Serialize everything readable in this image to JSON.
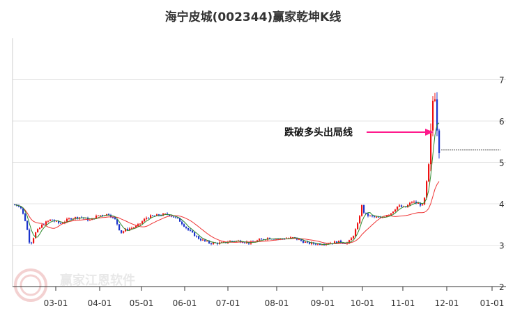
{
  "title": "海宁皮城(002344)赢家乾坤K线",
  "chart_data": {
    "type": "candlestick",
    "title": "海宁皮城(002344)赢家乾坤K线",
    "x_tick_labels": [
      "03-01",
      "04-01",
      "05-01",
      "06-01",
      "07-01",
      "08-01",
      "09-01",
      "10-01",
      "11-01",
      "12-01",
      "01-01"
    ],
    "y_tick_labels": [
      "7",
      "6",
      "5",
      "4",
      "3",
      "2"
    ],
    "ylim": [
      2,
      7.8
    ],
    "grid": true,
    "annotation": "跌破多头出局线",
    "series": [
      {
        "role": "short_ma",
        "color": "#2e8b2e"
      },
      {
        "role": "long_ma",
        "color": "#ee3333"
      }
    ],
    "candle_colors": {
      "up": "#ee1111",
      "down": "#1a33cc"
    },
    "last_close": 5.3,
    "watermark": "赢家江恩软件"
  }
}
